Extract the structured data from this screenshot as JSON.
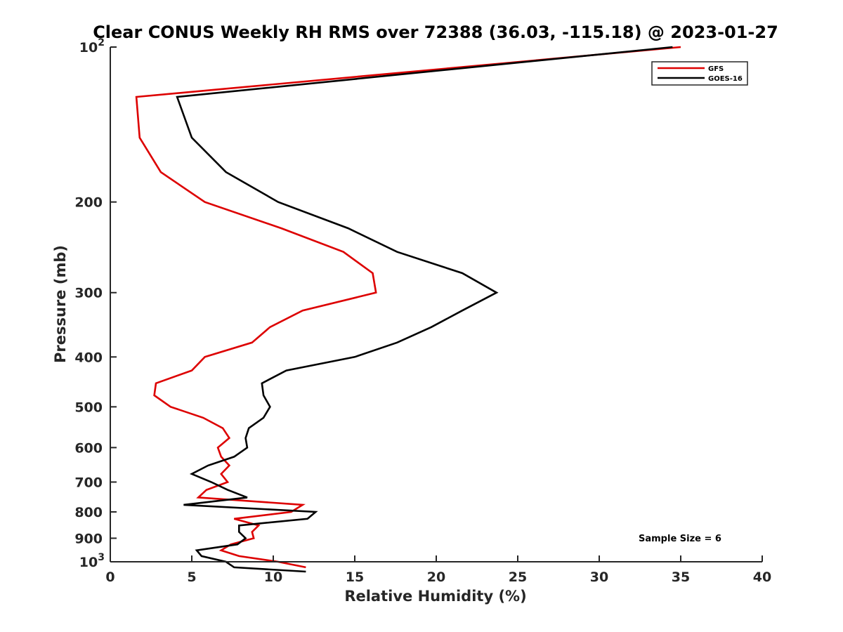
{
  "chart_data": {
    "type": "line",
    "title": "Clear CONUS Weekly RH RMS over 72388 (36.03, -115.18) @ 2023-01-27",
    "xlabel": "Relative Humidity (%)",
    "ylabel": "Pressure (mb)",
    "xlim": [
      0,
      40
    ],
    "ylim": [
      100,
      1000
    ],
    "y_scale": "log",
    "y_reversed": true,
    "x_ticks": [
      "0",
      "5",
      "10",
      "15",
      "20",
      "25",
      "30",
      "35",
      "40"
    ],
    "y_ticks": [
      {
        "value": 100,
        "base": "10",
        "exp": "2"
      },
      {
        "value": 200,
        "label": "200"
      },
      {
        "value": 300,
        "label": "300"
      },
      {
        "value": 400,
        "label": "400"
      },
      {
        "value": 500,
        "label": "500"
      },
      {
        "value": 600,
        "label": "600"
      },
      {
        "value": 700,
        "label": "700"
      },
      {
        "value": 800,
        "label": "800"
      },
      {
        "value": 900,
        "label": "900"
      },
      {
        "value": 1000,
        "base": "10",
        "exp": "3"
      }
    ],
    "legend_position": "top-right",
    "grid": false,
    "annotation": "Sample Size = 6",
    "series": [
      {
        "name": "GFS",
        "color": "#dd0000",
        "points": [
          [
            35.0,
            100
          ],
          [
            1.6,
            125
          ],
          [
            1.8,
            150
          ],
          [
            3.1,
            175
          ],
          [
            5.8,
            200
          ],
          [
            10.5,
            225
          ],
          [
            14.3,
            250
          ],
          [
            16.1,
            275
          ],
          [
            16.3,
            300
          ],
          [
            11.8,
            325
          ],
          [
            9.8,
            350
          ],
          [
            8.7,
            375
          ],
          [
            5.8,
            400
          ],
          [
            5.0,
            425
          ],
          [
            2.8,
            450
          ],
          [
            2.7,
            475
          ],
          [
            3.7,
            500
          ],
          [
            5.7,
            525
          ],
          [
            6.9,
            550
          ],
          [
            7.3,
            575
          ],
          [
            6.6,
            600
          ],
          [
            6.8,
            625
          ],
          [
            7.3,
            650
          ],
          [
            6.8,
            675
          ],
          [
            7.2,
            700
          ],
          [
            5.9,
            725
          ],
          [
            5.4,
            750
          ],
          [
            11.8,
            775
          ],
          [
            11.1,
            800
          ],
          [
            7.6,
            825
          ],
          [
            9.1,
            850
          ],
          [
            8.7,
            875
          ],
          [
            8.8,
            900
          ],
          [
            7.4,
            925
          ],
          [
            6.8,
            950
          ],
          [
            7.9,
            975
          ],
          [
            10.3,
            1000
          ],
          [
            12.0,
            1025
          ]
        ]
      },
      {
        "name": "GOES-16",
        "color": "#000000",
        "points": [
          [
            34.5,
            100
          ],
          [
            4.1,
            125
          ],
          [
            5.0,
            150
          ],
          [
            7.1,
            175
          ],
          [
            10.3,
            200
          ],
          [
            14.6,
            225
          ],
          [
            17.6,
            250
          ],
          [
            21.6,
            275
          ],
          [
            23.7,
            300
          ],
          [
            21.6,
            325
          ],
          [
            19.7,
            350
          ],
          [
            17.6,
            375
          ],
          [
            15.0,
            400
          ],
          [
            10.8,
            425
          ],
          [
            9.3,
            450
          ],
          [
            9.4,
            475
          ],
          [
            9.8,
            500
          ],
          [
            9.4,
            525
          ],
          [
            8.5,
            550
          ],
          [
            8.3,
            575
          ],
          [
            8.4,
            600
          ],
          [
            7.6,
            625
          ],
          [
            6.0,
            650
          ],
          [
            5.0,
            675
          ],
          [
            6.2,
            700
          ],
          [
            7.2,
            725
          ],
          [
            8.4,
            750
          ],
          [
            4.5,
            775
          ],
          [
            12.6,
            800
          ],
          [
            12.1,
            825
          ],
          [
            7.9,
            850
          ],
          [
            7.9,
            875
          ],
          [
            8.3,
            900
          ],
          [
            7.8,
            925
          ],
          [
            5.3,
            950
          ],
          [
            5.6,
            975
          ],
          [
            7.1,
            1000
          ],
          [
            7.6,
            1025
          ],
          [
            12.0,
            1045
          ]
        ]
      }
    ]
  }
}
